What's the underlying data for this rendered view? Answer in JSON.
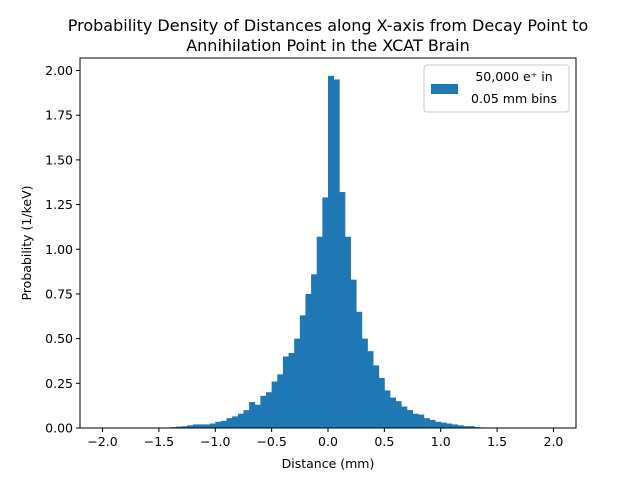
{
  "chart_data": {
    "type": "bar",
    "title_line1": "Probability Density of Distances along X-axis from Decay Point to",
    "title_line2": "Annihilation Point in the XCAT Brain",
    "xlabel": "Distance (mm)",
    "ylabel": "Probability (1/keV)",
    "xlim": [
      -2.2,
      2.2
    ],
    "ylim": [
      0,
      2.07
    ],
    "xticks": [
      -2.0,
      -1.5,
      -1.0,
      -0.5,
      0.0,
      0.5,
      1.0,
      1.5,
      2.0
    ],
    "xtick_labels": [
      "−2.0",
      "−1.5",
      "−1.0",
      "−0.5",
      "0.0",
      "0.5",
      "1.0",
      "1.5",
      "2.0"
    ],
    "yticks": [
      0.0,
      0.25,
      0.5,
      0.75,
      1.0,
      1.25,
      1.5,
      1.75,
      2.0
    ],
    "ytick_labels": [
      "0.00",
      "0.25",
      "0.50",
      "0.75",
      "1.00",
      "1.25",
      "1.50",
      "1.75",
      "2.00"
    ],
    "bin_width": 0.05,
    "bin_edges_start": -2.0,
    "values": [
      0,
      0,
      0,
      0,
      0,
      0,
      0,
      0,
      0,
      0,
      0.002,
      0.003,
      0.005,
      0.008,
      0.01,
      0.015,
      0.02,
      0.02,
      0.02,
      0.025,
      0.035,
      0.04,
      0.055,
      0.065,
      0.08,
      0.1,
      0.145,
      0.13,
      0.18,
      0.2,
      0.26,
      0.3,
      0.4,
      0.42,
      0.5,
      0.63,
      0.75,
      0.86,
      1.07,
      1.29,
      1.97,
      1.95,
      1.32,
      1.07,
      0.83,
      0.65,
      0.5,
      0.43,
      0.35,
      0.28,
      0.21,
      0.17,
      0.15,
      0.12,
      0.1,
      0.08,
      0.075,
      0.055,
      0.045,
      0.035,
      0.03,
      0.025,
      0.02,
      0.015,
      0.01,
      0.01,
      0.005,
      0.003,
      0.002,
      0.001,
      0,
      0,
      0,
      0,
      0,
      0,
      0,
      0,
      0,
      0
    ],
    "bar_color": "#1f77b4",
    "legend": {
      "label_line1": "50,000 e⁺ in",
      "label_line2": "0.05 mm bins",
      "placement": "top-right"
    }
  }
}
